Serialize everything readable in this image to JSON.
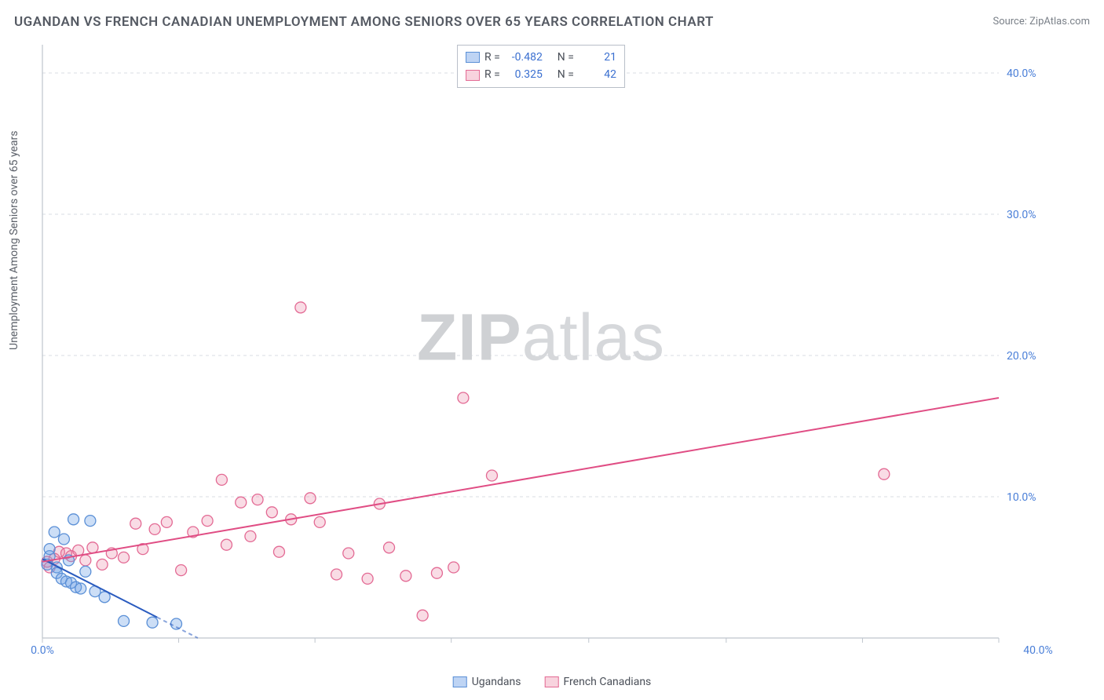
{
  "title": "UGANDAN VS FRENCH CANADIAN UNEMPLOYMENT AMONG SENIORS OVER 65 YEARS CORRELATION CHART",
  "source_label": "Source: ZipAtlas.com",
  "y_axis_label": "Unemployment Among Seniors over 65 years",
  "watermark": {
    "bold": "ZIP",
    "rest": "atlas"
  },
  "chart": {
    "type": "scatter",
    "background_color": "#ffffff",
    "grid_color": "#d9dde3",
    "axis_color": "#bfc5cd",
    "xlim": [
      0,
      40
    ],
    "ylim": [
      0,
      42
    ],
    "x_ticks": [
      0,
      5.7,
      11.4,
      17.1,
      22.85,
      28.6,
      34.3,
      40
    ],
    "x_tick_labels_shown": {
      "0": "0.0%",
      "40": "40.0%"
    },
    "y_ticks": [
      10,
      20,
      30,
      40
    ],
    "y_tick_labels": {
      "10": "10.0%",
      "20": "20.0%",
      "30": "30.0%",
      "40": "40.0%"
    },
    "marker_radius": 7,
    "marker_stroke_width": 1.3,
    "line_width": 2,
    "series": {
      "ugandans": {
        "label": "Ugandans",
        "color_fill": "rgba(110,160,230,0.35)",
        "color_stroke": "#5a8fd6",
        "line_color": "#2a5bbf",
        "points": [
          [
            0.2,
            5.2
          ],
          [
            0.3,
            5.8
          ],
          [
            0.3,
            6.3
          ],
          [
            0.5,
            7.5
          ],
          [
            0.6,
            5.0
          ],
          [
            0.6,
            4.6
          ],
          [
            0.8,
            4.2
          ],
          [
            0.9,
            7.0
          ],
          [
            1.0,
            4.0
          ],
          [
            1.1,
            5.5
          ],
          [
            1.2,
            3.9
          ],
          [
            1.3,
            8.4
          ],
          [
            1.4,
            3.6
          ],
          [
            1.6,
            3.5
          ],
          [
            1.8,
            4.7
          ],
          [
            2.0,
            8.3
          ],
          [
            2.2,
            3.3
          ],
          [
            2.6,
            2.9
          ],
          [
            3.4,
            1.2
          ],
          [
            4.6,
            1.1
          ],
          [
            5.6,
            1.0
          ]
        ],
        "trend": {
          "x1": 0,
          "y1": 5.6,
          "x2": 6.5,
          "y2": 0,
          "dash_after_x": 4.8
        },
        "R": "-0.482",
        "N": "21"
      },
      "french_canadians": {
        "label": "French Canadians",
        "color_fill": "rgba(235,130,160,0.28)",
        "color_stroke": "#e36a94",
        "line_color": "#e04d84",
        "points": [
          [
            0.2,
            5.4
          ],
          [
            0.3,
            5.0
          ],
          [
            0.5,
            5.6
          ],
          [
            0.7,
            6.1
          ],
          [
            1.0,
            6.0
          ],
          [
            1.2,
            5.8
          ],
          [
            1.5,
            6.2
          ],
          [
            1.8,
            5.5
          ],
          [
            2.1,
            6.4
          ],
          [
            2.5,
            5.2
          ],
          [
            2.9,
            6.0
          ],
          [
            3.4,
            5.7
          ],
          [
            3.9,
            8.1
          ],
          [
            4.2,
            6.3
          ],
          [
            4.7,
            7.7
          ],
          [
            5.2,
            8.2
          ],
          [
            5.8,
            4.8
          ],
          [
            6.3,
            7.5
          ],
          [
            6.9,
            8.3
          ],
          [
            7.5,
            11.2
          ],
          [
            7.7,
            6.6
          ],
          [
            8.3,
            9.6
          ],
          [
            8.7,
            7.2
          ],
          [
            9.0,
            9.8
          ],
          [
            9.6,
            8.9
          ],
          [
            9.9,
            6.1
          ],
          [
            10.4,
            8.4
          ],
          [
            10.8,
            23.4
          ],
          [
            11.2,
            9.9
          ],
          [
            11.6,
            8.2
          ],
          [
            12.3,
            4.5
          ],
          [
            12.8,
            6.0
          ],
          [
            13.6,
            4.2
          ],
          [
            14.1,
            9.5
          ],
          [
            14.5,
            6.4
          ],
          [
            15.2,
            4.4
          ],
          [
            15.9,
            1.6
          ],
          [
            16.5,
            4.6
          ],
          [
            17.2,
            5.0
          ],
          [
            17.6,
            17.0
          ],
          [
            18.8,
            11.5
          ],
          [
            35.2,
            11.6
          ]
        ],
        "trend": {
          "x1": 0,
          "y1": 5.4,
          "x2": 40,
          "y2": 17.0
        },
        "R": "0.325",
        "N": "42"
      }
    }
  },
  "stats_box": {
    "R_label": "R =",
    "N_label": "N ="
  },
  "legend": {
    "items": [
      {
        "key": "ugandans",
        "label": "Ugandans"
      },
      {
        "key": "french_canadians",
        "label": "French Canadians"
      }
    ]
  }
}
